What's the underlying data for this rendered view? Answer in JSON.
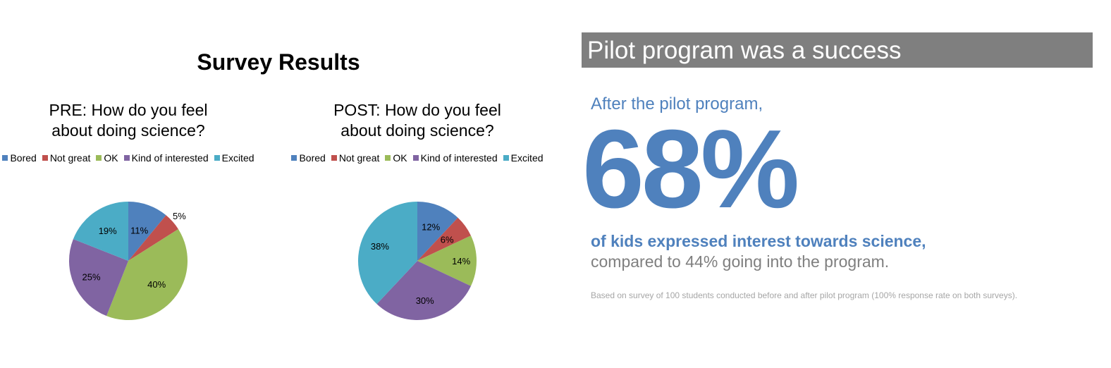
{
  "survey_title": "Survey Results",
  "chart_data": [
    {
      "type": "pie",
      "title_lines": [
        "PRE: How do you feel",
        "about doing science?"
      ],
      "categories": [
        "Bored",
        "Not great",
        "OK",
        "Kind of interested",
        "Excited"
      ],
      "values": [
        11,
        5,
        40,
        25,
        19
      ],
      "labels": [
        "11%",
        "5%",
        "40%",
        "25%",
        "19%"
      ],
      "colors": [
        "#4f81bd",
        "#c0504d",
        "#9bbb59",
        "#8064a2",
        "#4bacc6"
      ],
      "legend_position": "top"
    },
    {
      "type": "pie",
      "title_lines": [
        "POST: How do you feel",
        "about doing science?"
      ],
      "categories": [
        "Bored",
        "Not great",
        "OK",
        "Kind of interested",
        "Excited"
      ],
      "values": [
        12,
        6,
        14,
        30,
        38
      ],
      "labels": [
        "12%",
        "6%",
        "14%",
        "30%",
        "38%"
      ],
      "colors": [
        "#4f81bd",
        "#c0504d",
        "#9bbb59",
        "#8064a2",
        "#4bacc6"
      ],
      "legend_position": "top"
    }
  ],
  "highlight": {
    "banner": "Pilot program was a success",
    "intro": "After the pilot program,",
    "stat": "68%",
    "statement": "of kids expressed interest towards science,",
    "comparison": "compared to 44% going into the program.",
    "footnote": "Based on survey of 100 students conducted before and after pilot program (100% response rate on both surveys).",
    "accent_color": "#4f81bd",
    "banner_color": "#7f7f7f"
  }
}
